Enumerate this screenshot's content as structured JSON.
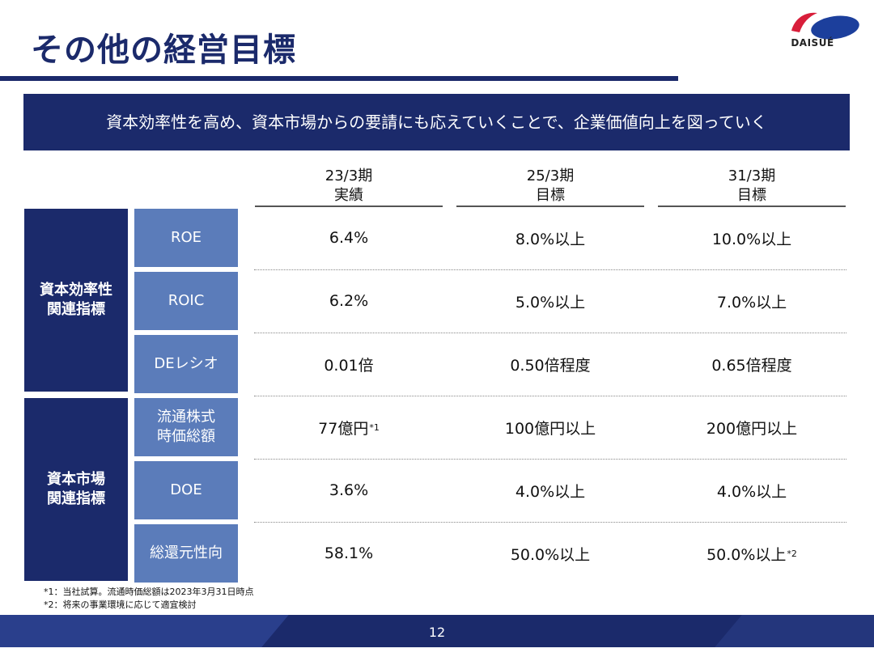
{
  "title": "その他の経営目標",
  "logo": {
    "text": "DAISUÉ"
  },
  "banner": "資本効率性を高め、資本市場からの要請にも応えていくことで、企業価値向上を図っていく",
  "columns": [
    {
      "line1": "23/3期",
      "line2": "実績"
    },
    {
      "line1": "25/3期",
      "line2": "目標"
    },
    {
      "line1": "31/3期",
      "line2": "目標"
    }
  ],
  "groups": [
    {
      "line1": "資本効率性",
      "line2": "関連指標"
    },
    {
      "line1": "資本市場",
      "line2": "関連指標"
    }
  ],
  "rows": [
    {
      "metric_line1": "ROE",
      "metric_line2": "",
      "values": [
        "6.4%",
        "8.0%以上",
        "10.0%以上"
      ],
      "notes": [
        "",
        "",
        ""
      ]
    },
    {
      "metric_line1": "ROIC",
      "metric_line2": "",
      "values": [
        "6.2%",
        "5.0%以上",
        "7.0%以上"
      ],
      "notes": [
        "",
        "",
        ""
      ]
    },
    {
      "metric_line1": "DEレシオ",
      "metric_line2": "",
      "values": [
        "0.01倍",
        "0.50倍程度",
        "0.65倍程度"
      ],
      "notes": [
        "",
        "",
        ""
      ]
    },
    {
      "metric_line1": "流通株式",
      "metric_line2": "時価総額",
      "values": [
        "77億円",
        "100億円以上",
        "200億円以上"
      ],
      "notes": [
        "*1",
        "",
        ""
      ]
    },
    {
      "metric_line1": "DOE",
      "metric_line2": "",
      "values": [
        "3.6%",
        "4.0%以上",
        "4.0%以上"
      ],
      "notes": [
        "",
        "",
        ""
      ]
    },
    {
      "metric_line1": "総還元性向",
      "metric_line2": "",
      "values": [
        "58.1%",
        "50.0%以上",
        "50.0%以上"
      ],
      "notes": [
        "",
        "",
        "*2"
      ]
    }
  ],
  "footnotes": [
    "*1：当社試算。流通時価総額は2023年3月31日時点",
    "*2：将来の事業環境に応じて適宜検討"
  ],
  "page_number": "12",
  "colors": {
    "navy": "#1b2a6b",
    "metric_blue": "#5b7cba",
    "logo_red": "#d81e3a",
    "logo_blue": "#1c3f9c"
  }
}
